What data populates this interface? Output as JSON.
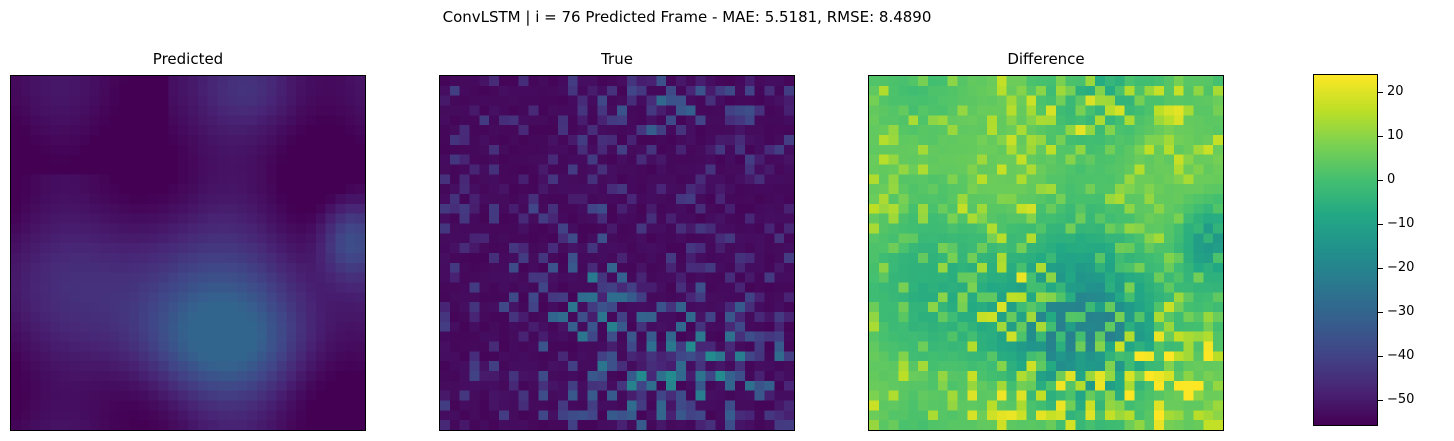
{
  "suptitle": "ConvLSTM | i = 76 Predicted Frame - MAE: 5.5181, RMSE: 8.4890",
  "chart_data": {
    "type": "heatmap",
    "colormap": "viridis",
    "grid_size": [
      36,
      36
    ],
    "vmin": -56,
    "vmax": 24,
    "panels": [
      {
        "title": "Predicted",
        "description": "smooth field, dark purple upper-left, blue blob lower-center and right edge"
      },
      {
        "title": "True",
        "description": "mostly dark purple, scattered blue-teal pixels lower half"
      },
      {
        "title": "Difference",
        "description": "green background with yellow-hot band lower-center and teal/purple speckles"
      }
    ],
    "colorbar": {
      "ticks": [
        20,
        10,
        0,
        -10,
        -20,
        -30,
        -40,
        -50
      ],
      "tick_labels": [
        "20",
        "10",
        "0",
        "−10",
        "−20",
        "−30",
        "−40",
        "−50"
      ]
    }
  }
}
